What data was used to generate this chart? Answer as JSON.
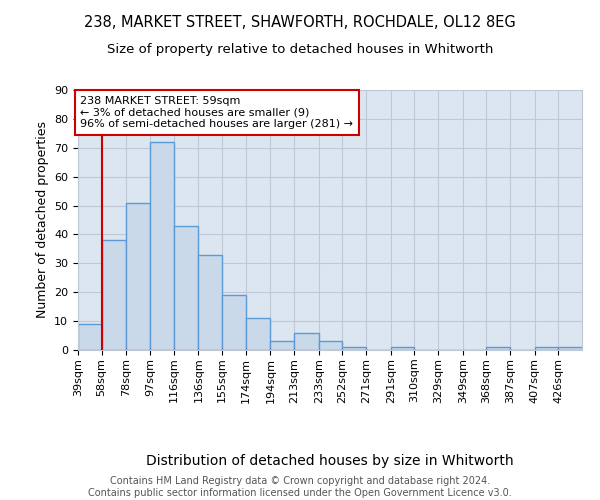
{
  "title_line1": "238, MARKET STREET, SHAWFORTH, ROCHDALE, OL12 8EG",
  "title_line2": "Size of property relative to detached houses in Whitworth",
  "xlabel": "Distribution of detached houses by size in Whitworth",
  "ylabel": "Number of detached properties",
  "bin_labels": [
    "39sqm",
    "58sqm",
    "78sqm",
    "97sqm",
    "116sqm",
    "136sqm",
    "155sqm",
    "174sqm",
    "194sqm",
    "213sqm",
    "233sqm",
    "252sqm",
    "271sqm",
    "291sqm",
    "310sqm",
    "329sqm",
    "349sqm",
    "368sqm",
    "387sqm",
    "407sqm",
    "426sqm"
  ],
  "bin_edges": [
    39,
    58,
    78,
    97,
    116,
    136,
    155,
    174,
    194,
    213,
    233,
    252,
    271,
    291,
    310,
    329,
    349,
    368,
    387,
    407,
    426,
    445
  ],
  "counts": [
    9,
    38,
    51,
    72,
    43,
    33,
    19,
    11,
    3,
    6,
    3,
    1,
    0,
    1,
    0,
    0,
    0,
    1,
    0,
    1,
    1
  ],
  "bar_fill": "#c9d9ea",
  "bar_edge": "#5b9bd5",
  "bar_linewidth": 1.0,
  "red_line_x": 58,
  "red_line_color": "#cc0000",
  "annotation_text": "238 MARKET STREET: 59sqm\n← 3% of detached houses are smaller (9)\n96% of semi-detached houses are larger (281) →",
  "annotation_box_color": "white",
  "annotation_box_edgecolor": "#cc0000",
  "ylim": [
    0,
    90
  ],
  "yticks": [
    0,
    10,
    20,
    30,
    40,
    50,
    60,
    70,
    80,
    90
  ],
  "grid_color": "#c0c8d8",
  "background_color": "#dce6f0",
  "footer_text": "Contains HM Land Registry data © Crown copyright and database right 2024.\nContains public sector information licensed under the Open Government Licence v3.0.",
  "title_fontsize": 10.5,
  "subtitle_fontsize": 9.5,
  "xlabel_fontsize": 10,
  "ylabel_fontsize": 9,
  "tick_fontsize": 8,
  "annotation_fontsize": 8,
  "footer_fontsize": 7
}
